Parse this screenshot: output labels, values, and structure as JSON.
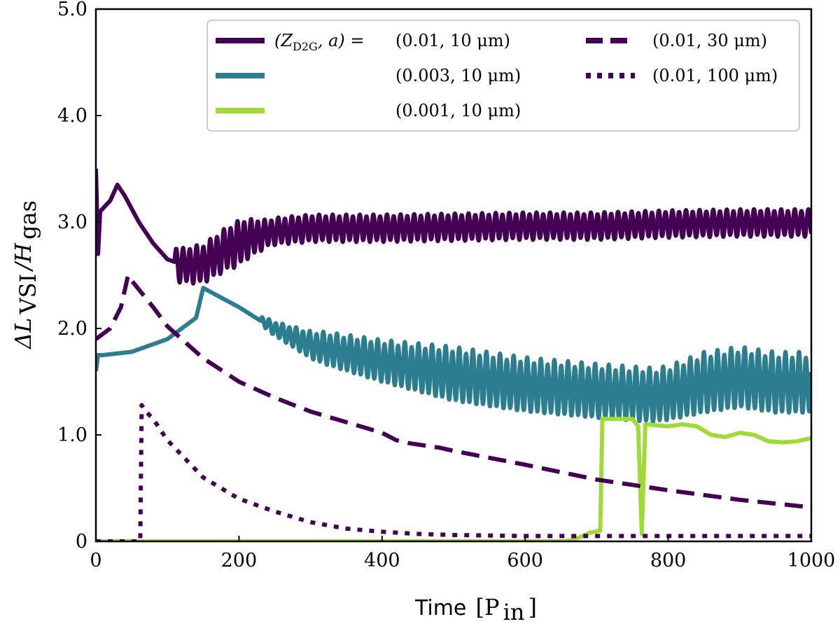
{
  "chart_data": {
    "type": "line",
    "xlabel_prefix": "Time",
    "xlabel_unit": "[P",
    "xlabel_unit_sub": "in",
    "xlabel_unit_close": "]",
    "ylabel_main": "ΔL",
    "ylabel_main_sub": "VSI",
    "ylabel_den": "/H",
    "ylabel_den_sub": "gas",
    "xlim": [
      0,
      1000
    ],
    "ylim": [
      0,
      5
    ],
    "xticks": [
      0,
      200,
      400,
      600,
      800,
      1000
    ],
    "xtick_labels": [
      "0",
      "200",
      "400",
      "600",
      "800",
      "1000"
    ],
    "yticks": [
      0,
      1,
      2,
      3,
      4,
      5
    ],
    "ytick_labels": [
      "0",
      "1.0",
      "2.0",
      "3.0",
      "4.0",
      "5.0"
    ],
    "legend_title_lhs": "(Z",
    "legend_title_lhs_sub": "D2G",
    "legend_title_rhs": ", a) =",
    "series": [
      {
        "name": "(0.01, 10 μm)",
        "color": "#440154",
        "style": "solid",
        "osc": {
          "start": 110,
          "period": 9.5,
          "amp_env": [
            [
              110,
              0.15
            ],
            [
              200,
              0.2
            ],
            [
              240,
              0.12
            ],
            [
              1000,
              0.12
            ]
          ]
        },
        "points": [
          [
            0,
            3.5
          ],
          [
            3,
            2.7
          ],
          [
            6,
            3.1
          ],
          [
            20,
            3.2
          ],
          [
            30,
            3.35
          ],
          [
            40,
            3.25
          ],
          [
            60,
            3.0
          ],
          [
            80,
            2.8
          ],
          [
            100,
            2.65
          ],
          [
            120,
            2.6
          ],
          [
            150,
            2.62
          ],
          [
            180,
            2.75
          ],
          [
            210,
            2.85
          ],
          [
            250,
            2.92
          ],
          [
            300,
            2.95
          ],
          [
            400,
            2.95
          ],
          [
            500,
            2.96
          ],
          [
            600,
            2.97
          ],
          [
            700,
            2.97
          ],
          [
            800,
            2.99
          ],
          [
            900,
            3.0
          ],
          [
            1000,
            3.0
          ]
        ]
      },
      {
        "name": "(0.003, 10 μm)",
        "color": "#2c7d8f",
        "style": "solid",
        "osc": {
          "start": 230,
          "period": 9.5,
          "amp_env": [
            [
              230,
              0.04
            ],
            [
              320,
              0.15
            ],
            [
              500,
              0.25
            ],
            [
              800,
              0.25
            ],
            [
              850,
              0.28
            ],
            [
              1000,
              0.28
            ]
          ]
        },
        "points": [
          [
            0,
            1.6
          ],
          [
            3,
            1.75
          ],
          [
            10,
            1.75
          ],
          [
            50,
            1.78
          ],
          [
            100,
            1.9
          ],
          [
            140,
            2.1
          ],
          [
            150,
            2.38
          ],
          [
            200,
            2.2
          ],
          [
            250,
            2.0
          ],
          [
            300,
            1.85
          ],
          [
            400,
            1.7
          ],
          [
            500,
            1.58
          ],
          [
            600,
            1.48
          ],
          [
            700,
            1.42
          ],
          [
            780,
            1.38
          ],
          [
            800,
            1.4
          ],
          [
            850,
            1.5
          ],
          [
            900,
            1.55
          ],
          [
            950,
            1.5
          ],
          [
            1000,
            1.5
          ]
        ]
      },
      {
        "name": "(0.001, 10 μm)",
        "color": "#a0da39",
        "style": "solid",
        "points": [
          [
            0,
            0.0
          ],
          [
            655,
            0.0
          ],
          [
            670,
            0.02
          ],
          [
            690,
            0.08
          ],
          [
            705,
            0.1
          ],
          [
            708,
            1.15
          ],
          [
            750,
            1.15
          ],
          [
            758,
            1.08
          ],
          [
            763,
            0.07
          ],
          [
            768,
            1.1
          ],
          [
            800,
            1.08
          ],
          [
            820,
            1.1
          ],
          [
            840,
            1.08
          ],
          [
            860,
            1.0
          ],
          [
            880,
            0.98
          ],
          [
            900,
            1.02
          ],
          [
            920,
            1.0
          ],
          [
            940,
            0.94
          ],
          [
            960,
            0.93
          ],
          [
            980,
            0.94
          ],
          [
            1000,
            0.97
          ]
        ]
      },
      {
        "name": "(0.01, 30 μm)",
        "color": "#440154",
        "style": "dashed",
        "points": [
          [
            0,
            1.9
          ],
          [
            20,
            2.0
          ],
          [
            35,
            2.2
          ],
          [
            45,
            2.5
          ],
          [
            50,
            2.45
          ],
          [
            80,
            2.2
          ],
          [
            100,
            2.02
          ],
          [
            150,
            1.72
          ],
          [
            200,
            1.5
          ],
          [
            250,
            1.35
          ],
          [
            300,
            1.22
          ],
          [
            350,
            1.12
          ],
          [
            380,
            1.06
          ],
          [
            400,
            1.02
          ],
          [
            420,
            0.95
          ],
          [
            440,
            0.92
          ],
          [
            460,
            0.9
          ],
          [
            480,
            0.88
          ],
          [
            500,
            0.85
          ],
          [
            600,
            0.72
          ],
          [
            700,
            0.58
          ],
          [
            800,
            0.48
          ],
          [
            900,
            0.39
          ],
          [
            1000,
            0.32
          ]
        ]
      },
      {
        "name": "(0.01, 100 μm)",
        "color": "#440154",
        "style": "dotted",
        "points": [
          [
            0,
            0.0
          ],
          [
            62,
            0.0
          ],
          [
            64,
            1.28
          ],
          [
            70,
            1.22
          ],
          [
            80,
            1.15
          ],
          [
            100,
            0.95
          ],
          [
            150,
            0.6
          ],
          [
            200,
            0.4
          ],
          [
            250,
            0.28
          ],
          [
            300,
            0.18
          ],
          [
            350,
            0.12
          ],
          [
            400,
            0.09
          ],
          [
            450,
            0.07
          ],
          [
            500,
            0.06
          ],
          [
            600,
            0.05
          ],
          [
            700,
            0.05
          ],
          [
            800,
            0.05
          ],
          [
            900,
            0.05
          ],
          [
            1000,
            0.05
          ]
        ]
      }
    ]
  }
}
